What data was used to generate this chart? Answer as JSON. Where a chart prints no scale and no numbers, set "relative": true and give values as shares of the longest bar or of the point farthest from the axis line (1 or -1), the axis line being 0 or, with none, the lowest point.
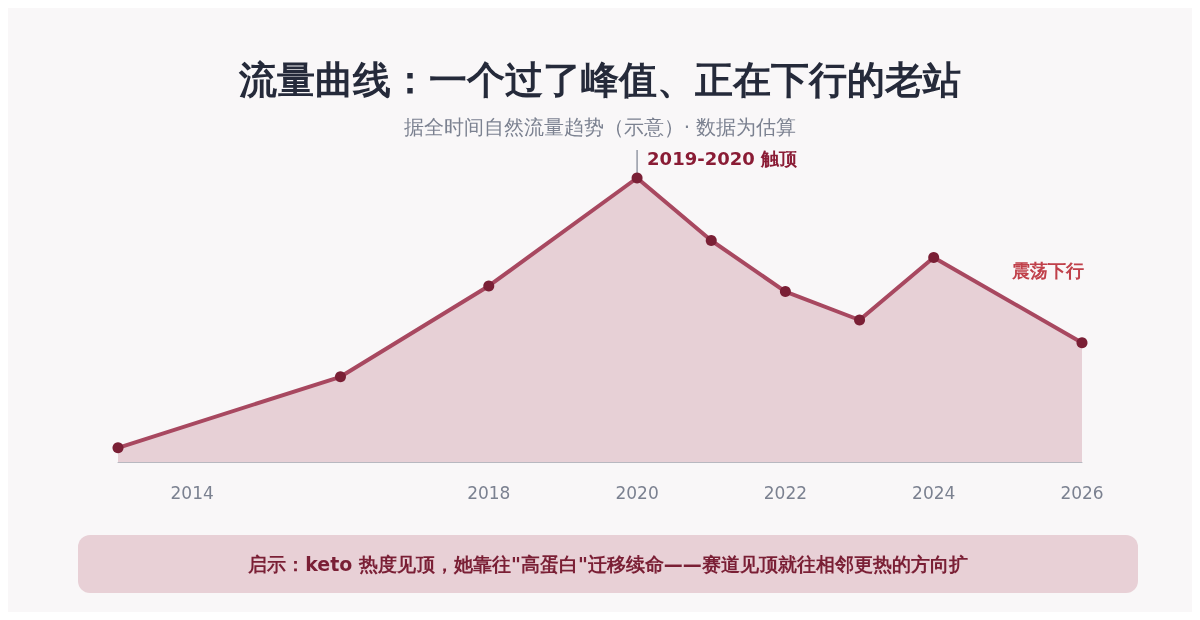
{
  "chart_data": {
    "type": "area",
    "title": "流量曲线：一个过了峰值、正在下行的老站",
    "subtitle": "据全时间自然流量趋势（示意）· 数据为估算",
    "x": [
      2013,
      2016,
      2018,
      2020,
      2021,
      2022,
      2023,
      2024,
      2026
    ],
    "series": [
      {
        "color": "#a84860",
        "values": [
          0.05,
          0.3,
          0.62,
          1,
          0.78,
          0.6,
          0.5,
          0.72,
          0.42
        ]
      }
    ],
    "relative": true,
    "xlim": [
      2013,
      2026
    ],
    "xticks": [
      2014,
      2018,
      2020,
      2022,
      2024,
      2026
    ],
    "marker": "circle",
    "grid": false,
    "annotations": [
      {
        "text": "2019-2020 触顶",
        "x": 2020,
        "y": 1
      },
      "震荡下行",
      "启示：keto 热度见顶，她靠往\"高蛋白\"迁移续命——赛道见顶就往相邻更热的方向扩"
    ]
  }
}
